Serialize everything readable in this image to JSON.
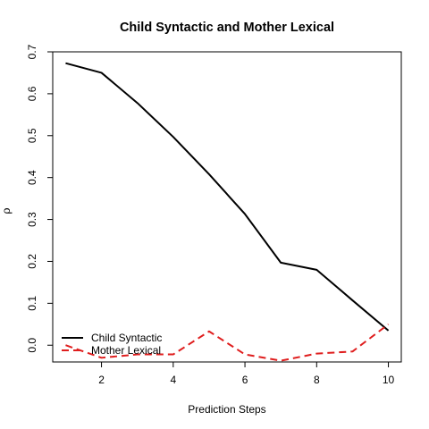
{
  "chart_data": {
    "type": "line",
    "title": "Child Syntactic and Mother Lexical",
    "xlabel": "Prediction Steps",
    "ylabel": "ρ",
    "x": [
      1,
      2,
      3,
      4,
      5,
      6,
      7,
      8,
      9,
      10
    ],
    "xlim": [
      1,
      10
    ],
    "ylim": [
      -0.04,
      0.7
    ],
    "xticks": [
      2,
      4,
      6,
      8,
      10
    ],
    "yticks": [
      0.0,
      0.1,
      0.2,
      0.3,
      0.4,
      0.5,
      0.6,
      0.7
    ],
    "xtick_labels": [
      "2",
      "4",
      "6",
      "8",
      "10"
    ],
    "ytick_labels": [
      "0.0",
      "0.1",
      "0.2",
      "0.3",
      "0.4",
      "0.5",
      "0.6",
      "0.7"
    ],
    "grid": false,
    "legend_position": "bottom-left",
    "series": [
      {
        "name": "Child Syntactic",
        "color": "#000000",
        "style": "solid",
        "values": [
          0.673,
          0.65,
          0.578,
          0.497,
          0.408,
          0.313,
          0.197,
          0.18,
          0.107,
          0.035
        ]
      },
      {
        "name": "Mother Lexical",
        "color": "#DF1E1E",
        "style": "dashed",
        "values": [
          0.0,
          -0.03,
          -0.022,
          -0.022,
          0.033,
          -0.022,
          -0.037,
          -0.02,
          -0.015,
          0.05
        ]
      }
    ]
  }
}
